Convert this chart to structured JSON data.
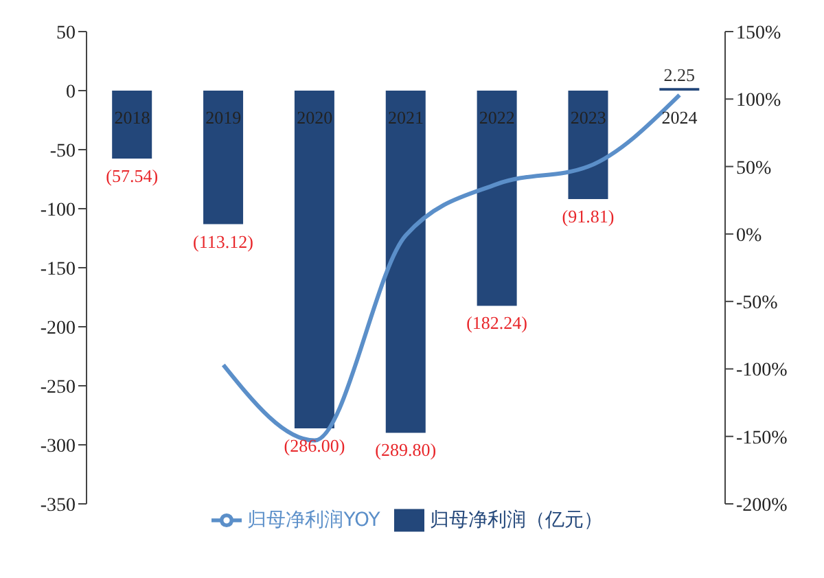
{
  "chart_data": {
    "type": "bar",
    "categories": [
      "2018",
      "2019",
      "2020",
      "2021",
      "2022",
      "2023",
      "2024"
    ],
    "series": [
      {
        "name": "归母净利润（亿元）",
        "color": "#23477a",
        "values": [
          -57.54,
          -113.12,
          -286.0,
          -289.8,
          -182.24,
          -91.81,
          2.25
        ],
        "value_labels": [
          "(57.54)",
          "(113.12)",
          "(286.00)",
          "(289.80)",
          "(182.24)",
          "(91.81)",
          "2.25"
        ]
      },
      {
        "name": "归母净利润YOY",
        "type": "line",
        "axis": "y2",
        "color": "#5b8fc9",
        "values": [
          null,
          -97,
          -153,
          -1,
          37,
          50,
          103
        ]
      }
    ],
    "ylim": [
      -350,
      50
    ],
    "yticks": [
      -350,
      -300,
      -250,
      -200,
      -150,
      -100,
      -50,
      0,
      50
    ],
    "y2lim": [
      -200,
      150
    ],
    "y2ticks": [
      {
        "value": -200,
        "label": "-200%"
      },
      {
        "value": -150,
        "label": "-150%"
      },
      {
        "value": -100,
        "label": "-100%"
      },
      {
        "value": -50,
        "label": "-50%"
      },
      {
        "value": 0,
        "label": "0%"
      },
      {
        "value": 50,
        "label": "50%"
      },
      {
        "value": 100,
        "label": "100%"
      },
      {
        "value": 150,
        "label": "150%"
      }
    ],
    "legend": "bottom",
    "marker": "none",
    "grid": false
  }
}
